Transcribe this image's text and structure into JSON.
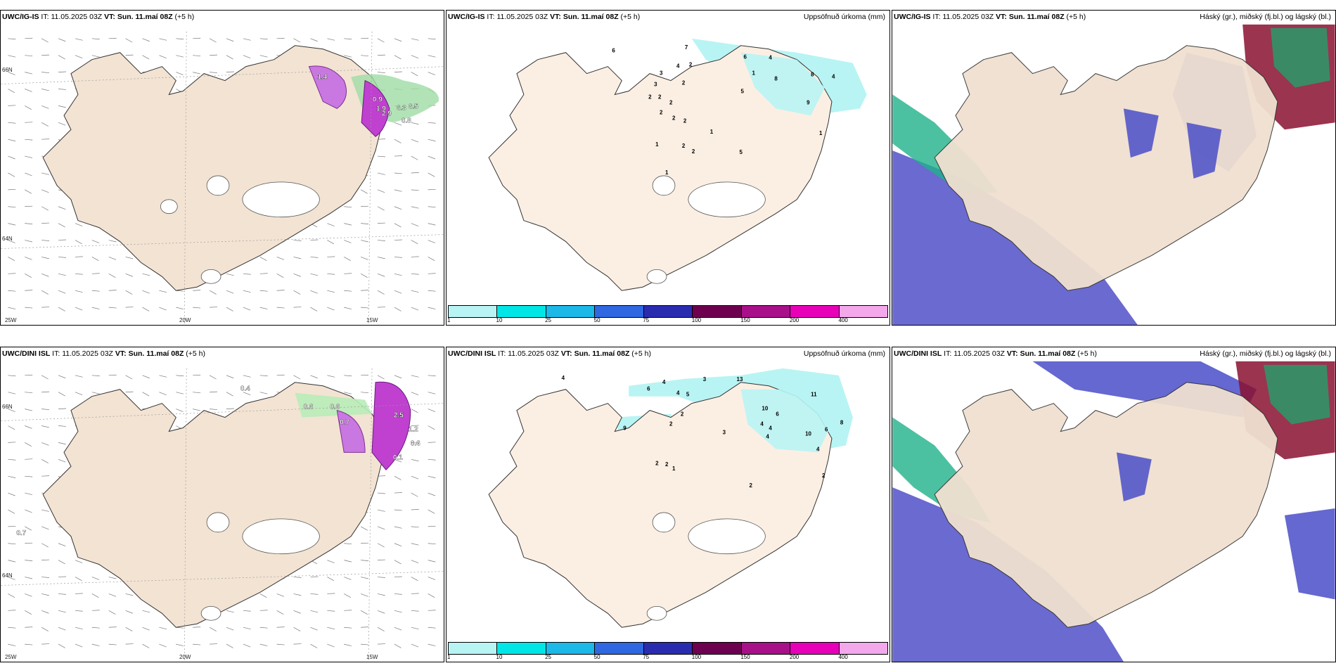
{
  "rows": [
    {
      "model": "UWC/IG-IS",
      "it_label": "IT:",
      "it_value": "11.05.2025 03Z",
      "vt_label": "VT:",
      "vt_value": "Sun. 11.maí 08Z",
      "lead": "(+5 h)"
    },
    {
      "model": "UWC/DINI ISL",
      "it_label": "IT:",
      "it_value": "11.05.2025 03Z",
      "vt_label": "VT:",
      "vt_value": "Sun. 11.maí 08Z",
      "lead": "(+5 h)"
    }
  ],
  "precip_title": "Uppsöfnuð úrkoma (mm)",
  "cloud_title": "Háský (gr.), miðský (fj.bl.) og lágský (bl.)",
  "lat_labels": [
    "66N",
    "64N"
  ],
  "lon_labels": [
    "25W",
    "20W",
    "15W"
  ],
  "colorbar": {
    "labels": [
      "1",
      "10",
      "25",
      "50",
      "75",
      "100",
      "150",
      "200",
      "400"
    ],
    "colors": [
      "#b8f4f4",
      "#00e6e6",
      "#1cb8e8",
      "#2f68e0",
      "#2a2cb0",
      "#6e0050",
      "#a8108a",
      "#e800b8",
      "#f4a8ec"
    ]
  },
  "wind_panel_values": [
    [
      "1.4",
      "0.9",
      "1.9",
      "2.9",
      "6.3",
      "6.5",
      "0.8"
    ],
    [
      "0.4",
      "0.6",
      "0.6",
      "0.7",
      "2.5",
      "1.2",
      "0.6",
      "0.1",
      "0.7"
    ]
  ],
  "precip_values": [
    [
      "6",
      "7",
      "4",
      "6",
      "2",
      "3",
      "3",
      "2",
      "2",
      "2",
      "2",
      "2",
      "1",
      "1",
      "2",
      "2",
      "5",
      "1",
      "1",
      "8",
      "8",
      "4",
      "5",
      "9",
      "4",
      "2",
      "2",
      "1"
    ],
    [
      "4",
      "6",
      "4",
      "4",
      "5",
      "3",
      "13",
      "10",
      "6",
      "11",
      "8",
      "4",
      "9",
      "2",
      "2",
      "3",
      "4",
      "4",
      "10",
      "6",
      "4",
      "2",
      "2",
      "2",
      "1",
      "2"
    ]
  ]
}
